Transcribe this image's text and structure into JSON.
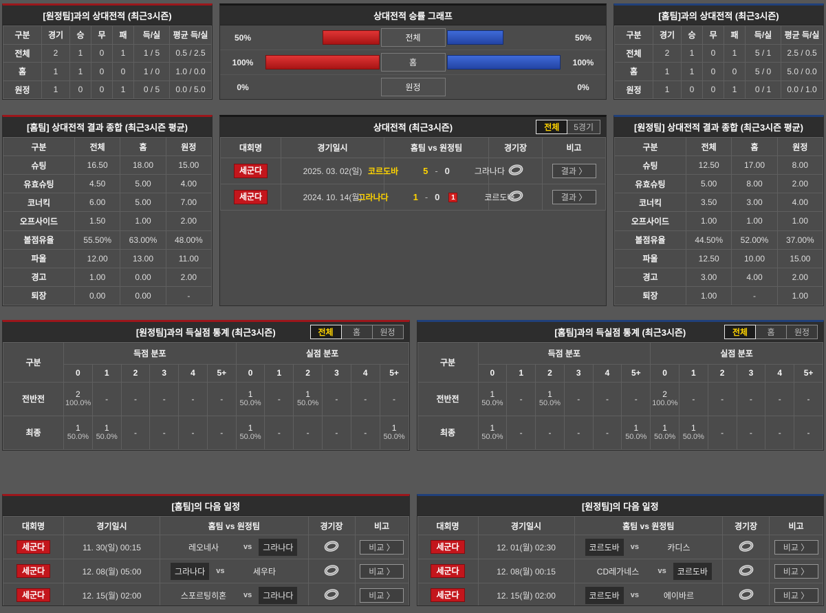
{
  "labels": {
    "vs": "vs"
  },
  "icons": {
    "stadium": "stadium-globe-icon",
    "arrow": "〉"
  },
  "colors": {
    "home_accent": "#9c161b",
    "away_accent": "#20407a",
    "home_bar": "#c42424",
    "away_bar": "#2f56c0",
    "highlight_yellow": "#ffd400",
    "league_badge": "#c3161c"
  },
  "top_left": {
    "title": "[원정팀]과의 상대전적 (최근3시즌)",
    "headers": [
      "구분",
      "경기",
      "승",
      "무",
      "패",
      "득/실",
      "평균 득/실"
    ],
    "rows": [
      [
        "전체",
        "2",
        "1",
        "0",
        "1",
        "1 / 5",
        "0.5 / 2.5"
      ],
      [
        "홈",
        "1",
        "1",
        "0",
        "0",
        "1 / 0",
        "1.0 / 0.0"
      ],
      [
        "원정",
        "1",
        "0",
        "0",
        "1",
        "0 / 5",
        "0.0 / 5.0"
      ]
    ]
  },
  "graph": {
    "title": "상대전적 승률 그래프",
    "rows": [
      {
        "label": "전체",
        "left_label": "50%",
        "left_value": 50,
        "right_label": "50%",
        "right_value": 50
      },
      {
        "label": "홈",
        "left_label": "100%",
        "left_value": 100,
        "right_label": "100%",
        "right_value": 100
      },
      {
        "label": "원정",
        "left_label": "0%",
        "left_value": 0,
        "right_label": "0%",
        "right_value": 0
      }
    ]
  },
  "top_right": {
    "title": "[홈팀]과의 상대전적 (최근3시즌)",
    "headers": [
      "구분",
      "경기",
      "승",
      "무",
      "패",
      "득/실",
      "평균 득/실"
    ],
    "rows": [
      [
        "전체",
        "2",
        "1",
        "0",
        "1",
        "5 / 1",
        "2.5 / 0.5"
      ],
      [
        "홈",
        "1",
        "1",
        "0",
        "0",
        "5 / 0",
        "5.0 / 0.0"
      ],
      [
        "원정",
        "1",
        "0",
        "0",
        "1",
        "0 / 1",
        "0.0 / 1.0"
      ]
    ]
  },
  "home_summary": {
    "title": "[홈팀] 상대전적 결과 종합 (최근3시즌 평균)",
    "headers": [
      "구분",
      "전체",
      "홈",
      "원정"
    ],
    "rows": [
      [
        "슈팅",
        "16.50",
        "18.00",
        "15.00"
      ],
      [
        "유효슈팅",
        "4.50",
        "5.00",
        "4.00"
      ],
      [
        "코너킥",
        "6.00",
        "5.00",
        "7.00"
      ],
      [
        "오프사이드",
        "1.50",
        "1.00",
        "2.00"
      ],
      [
        "볼점유율",
        "55.50%",
        "63.00%",
        "48.00%"
      ],
      [
        "파울",
        "12.00",
        "13.00",
        "11.00"
      ],
      [
        "경고",
        "1.00",
        "0.00",
        "2.00"
      ],
      [
        "퇴장",
        "0.00",
        "0.00",
        "-"
      ]
    ]
  },
  "away_summary": {
    "title": "[원정팀] 상대전적 결과 종합 (최근3시즌 평균)",
    "headers": [
      "구분",
      "전체",
      "홈",
      "원정"
    ],
    "rows": [
      [
        "슈팅",
        "12.50",
        "17.00",
        "8.00"
      ],
      [
        "유효슈팅",
        "5.00",
        "8.00",
        "2.00"
      ],
      [
        "코너킥",
        "3.50",
        "3.00",
        "4.00"
      ],
      [
        "오프사이드",
        "1.00",
        "1.00",
        "1.00"
      ],
      [
        "볼점유율",
        "44.50%",
        "52.00%",
        "37.00%"
      ],
      [
        "파울",
        "12.50",
        "10.00",
        "15.00"
      ],
      [
        "경고",
        "3.00",
        "4.00",
        "2.00"
      ],
      [
        "퇴장",
        "1.00",
        "-",
        "1.00"
      ]
    ]
  },
  "h2h": {
    "title": "상대전적 (최근3시즌)",
    "filters": [
      "전체",
      "5경기"
    ],
    "headers": [
      "대회명",
      "경기일시",
      "홈팀  vs  원정팀",
      "경기장",
      "비고"
    ],
    "action_label": "결과 〉",
    "matches": [
      {
        "league": "세군다",
        "date": "2025. 03. 02(일)",
        "home": "코르도바",
        "home_win": true,
        "score_home": "5",
        "score_sep": "-",
        "score_away": "0",
        "red_card": "",
        "away": "그라나다",
        "away_win": false
      },
      {
        "league": "세군다",
        "date": "2024. 10. 14(월)",
        "home": "그라나다",
        "home_win": true,
        "score_home": "1",
        "score_sep": "-",
        "score_away": "0",
        "red_card": "1",
        "away": "코르도바",
        "away_win": false
      }
    ]
  },
  "score_stats_left": {
    "title": "[원정팀]과의 득실점 통계 (최근3시즌)",
    "filters": [
      "전체",
      "홈",
      "원정"
    ],
    "corner_label": "구분",
    "for_label": "득점 분포",
    "against_label": "실점 분포",
    "bins": [
      "0",
      "1",
      "2",
      "3",
      "4",
      "5+"
    ],
    "rows": [
      {
        "label": "전반전",
        "for": [
          {
            "n": "2",
            "p": "100.0%"
          },
          {
            "n": "-",
            "p": ""
          },
          {
            "n": "-",
            "p": ""
          },
          {
            "n": "-",
            "p": ""
          },
          {
            "n": "-",
            "p": ""
          },
          {
            "n": "-",
            "p": ""
          }
        ],
        "against": [
          {
            "n": "1",
            "p": "50.0%"
          },
          {
            "n": "-",
            "p": ""
          },
          {
            "n": "1",
            "p": "50.0%"
          },
          {
            "n": "-",
            "p": ""
          },
          {
            "n": "-",
            "p": ""
          },
          {
            "n": "-",
            "p": ""
          }
        ]
      },
      {
        "label": "최종",
        "for": [
          {
            "n": "1",
            "p": "50.0%"
          },
          {
            "n": "1",
            "p": "50.0%"
          },
          {
            "n": "-",
            "p": ""
          },
          {
            "n": "-",
            "p": ""
          },
          {
            "n": "-",
            "p": ""
          },
          {
            "n": "-",
            "p": ""
          }
        ],
        "against": [
          {
            "n": "1",
            "p": "50.0%"
          },
          {
            "n": "-",
            "p": ""
          },
          {
            "n": "-",
            "p": ""
          },
          {
            "n": "-",
            "p": ""
          },
          {
            "n": "-",
            "p": ""
          },
          {
            "n": "1",
            "p": "50.0%"
          }
        ]
      }
    ]
  },
  "score_stats_right": {
    "title": "[홈팀]과의 득실점 통계 (최근3시즌)",
    "filters": [
      "전체",
      "홈",
      "원정"
    ],
    "corner_label": "구분",
    "for_label": "득점 분포",
    "against_label": "실점 분포",
    "bins": [
      "0",
      "1",
      "2",
      "3",
      "4",
      "5+"
    ],
    "rows": [
      {
        "label": "전반전",
        "for": [
          {
            "n": "1",
            "p": "50.0%"
          },
          {
            "n": "-",
            "p": ""
          },
          {
            "n": "1",
            "p": "50.0%"
          },
          {
            "n": "-",
            "p": ""
          },
          {
            "n": "-",
            "p": ""
          },
          {
            "n": "-",
            "p": ""
          }
        ],
        "against": [
          {
            "n": "2",
            "p": "100.0%"
          },
          {
            "n": "-",
            "p": ""
          },
          {
            "n": "-",
            "p": ""
          },
          {
            "n": "-",
            "p": ""
          },
          {
            "n": "-",
            "p": ""
          },
          {
            "n": "-",
            "p": ""
          }
        ]
      },
      {
        "label": "최종",
        "for": [
          {
            "n": "1",
            "p": "50.0%"
          },
          {
            "n": "-",
            "p": ""
          },
          {
            "n": "-",
            "p": ""
          },
          {
            "n": "-",
            "p": ""
          },
          {
            "n": "-",
            "p": ""
          },
          {
            "n": "1",
            "p": "50.0%"
          }
        ],
        "against": [
          {
            "n": "1",
            "p": "50.0%"
          },
          {
            "n": "1",
            "p": "50.0%"
          },
          {
            "n": "-",
            "p": ""
          },
          {
            "n": "-",
            "p": ""
          },
          {
            "n": "-",
            "p": ""
          },
          {
            "n": "-",
            "p": ""
          }
        ]
      }
    ]
  },
  "schedule_left": {
    "title": "[홈팀]의 다음 일정",
    "headers": [
      "대회명",
      "경기일시",
      "홈팀  vs  원정팀",
      "경기장",
      "비고"
    ],
    "action_label": "비교 〉",
    "rows": [
      {
        "league": "세군다",
        "date": "11. 30(일) 00:15",
        "home": "레오네사",
        "away": "그라나다",
        "home_hl": false,
        "away_hl": true
      },
      {
        "league": "세군다",
        "date": "12. 08(월) 05:00",
        "home": "그라나다",
        "away": "세우타",
        "home_hl": true,
        "away_hl": false
      },
      {
        "league": "세군다",
        "date": "12. 15(월) 02:00",
        "home": "스포르팅히혼",
        "away": "그라나다",
        "home_hl": false,
        "away_hl": true
      }
    ]
  },
  "schedule_right": {
    "title": "[원정팀]의 다음 일정",
    "headers": [
      "대회명",
      "경기일시",
      "홈팀  vs  원정팀",
      "경기장",
      "비고"
    ],
    "action_label": "비교 〉",
    "rows": [
      {
        "league": "세군다",
        "date": "12. 01(월) 02:30",
        "home": "코르도바",
        "away": "카디스",
        "home_hl": true,
        "away_hl": false
      },
      {
        "league": "세군다",
        "date": "12. 08(월) 00:15",
        "home": "CD레가네스",
        "away": "코르도바",
        "home_hl": false,
        "away_hl": true
      },
      {
        "league": "세군다",
        "date": "12. 15(월) 02:00",
        "home": "코르도바",
        "away": "에이바르",
        "home_hl": true,
        "away_hl": false
      }
    ]
  }
}
